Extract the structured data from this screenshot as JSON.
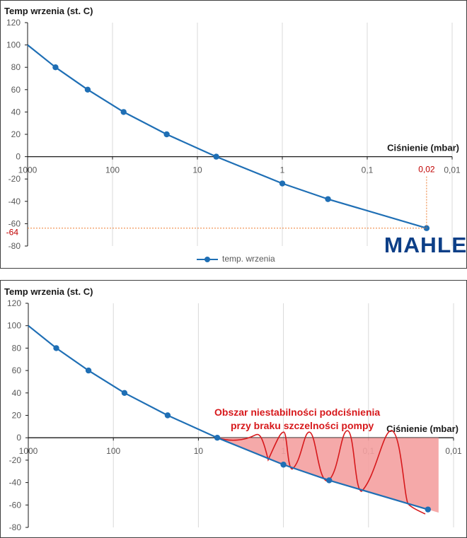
{
  "chart_data": [
    {
      "type": "line",
      "ylabel": "Temp wrzenia (st. C)",
      "xlabel": "Ciśnienie (mbar)",
      "x_scale": "log",
      "x_reversed": true,
      "xlim": [
        1000,
        0.01
      ],
      "ylim": [
        -80,
        120
      ],
      "y_ticks": [
        120,
        100,
        80,
        60,
        40,
        20,
        0,
        -20,
        -40,
        -60,
        -80
      ],
      "x_ticks": [
        1000,
        100,
        10,
        1,
        0.1,
        0.01
      ],
      "x_tick_labels": [
        "1000",
        "100",
        "10",
        "1",
        "0,1",
        "0,01"
      ],
      "series": [
        {
          "name": "temp. wrzenia",
          "color": "#1f6fb5",
          "x": [
            1000,
            469,
            196,
            74,
            23,
            6,
            1,
            0.29,
            0.02
          ],
          "y": [
            100,
            80,
            60,
            40,
            20,
            0,
            -24,
            -38,
            -64
          ]
        }
      ],
      "annotations": {
        "x_value_label": "0,02",
        "y_value_label": "-64",
        "color": "#c00000"
      },
      "legend": "bottom-center",
      "grid": "vertical",
      "logo": "MAHLE"
    },
    {
      "type": "line",
      "ylabel": "Temp wrzenia (st. C)",
      "xlabel": "Ciśnienie (mbar)",
      "x_scale": "log",
      "x_reversed": true,
      "xlim": [
        1000,
        0.01
      ],
      "ylim": [
        -80,
        120
      ],
      "y_ticks": [
        120,
        100,
        80,
        60,
        40,
        20,
        0,
        -20,
        -40,
        -60,
        -80
      ],
      "x_ticks": [
        1000,
        100,
        10,
        1,
        0.1,
        0.01
      ],
      "x_tick_labels": [
        "1000",
        "100",
        "10",
        "1",
        "0,1",
        "0,01"
      ],
      "series": [
        {
          "color": "#1f6fb5",
          "x": [
            1000,
            469,
            196,
            74,
            23,
            6,
            1,
            0.29,
            0.02
          ],
          "y": [
            100,
            80,
            60,
            40,
            20,
            0,
            -24,
            -38,
            -64
          ]
        }
      ],
      "annotation_text": [
        "Obszar niestabilności podciśnienia",
        "przy braku szczelności pompy"
      ],
      "annotation_color": "#d7191c",
      "shaded_region_color": "#f4a0a0",
      "grid": "vertical"
    }
  ],
  "logo_text": "MAHLE"
}
